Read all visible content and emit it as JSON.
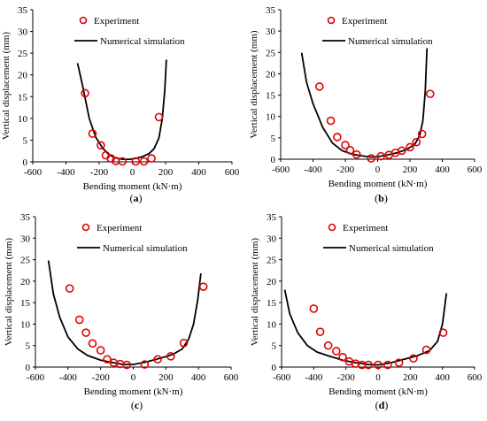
{
  "chart_data": [
    {
      "type": "scatter+line",
      "caption": "a",
      "xlabel": "Bending moment (kN·m)",
      "ylabel": "Vertical displacement (mm)",
      "xlim": [
        -600,
        600
      ],
      "ylim": [
        0,
        35
      ],
      "xticks": [
        -600,
        -400,
        -200,
        0,
        200,
        400,
        600
      ],
      "yticks": [
        0,
        5,
        10,
        15,
        20,
        25,
        30,
        35
      ],
      "legend": [
        "Experiment",
        "Numerical simulation"
      ],
      "experiment": [
        [
          -285,
          15.8
        ],
        [
          -240,
          6.5
        ],
        [
          -190,
          3.8
        ],
        [
          -160,
          1.5
        ],
        [
          -130,
          0.8
        ],
        [
          -100,
          0.2
        ],
        [
          -60,
          0.1
        ],
        [
          20,
          0.1
        ],
        [
          70,
          0.1
        ],
        [
          115,
          0.8
        ],
        [
          160,
          10.3
        ]
      ],
      "simulation": [
        [
          -330,
          22.7
        ],
        [
          -300,
          17.5
        ],
        [
          -260,
          10.0
        ],
        [
          -220,
          5.6
        ],
        [
          -180,
          3.2
        ],
        [
          -140,
          1.6
        ],
        [
          -100,
          0.9
        ],
        [
          -60,
          0.6
        ],
        [
          -20,
          0.6
        ],
        [
          20,
          0.8
        ],
        [
          60,
          1.2
        ],
        [
          100,
          1.9
        ],
        [
          130,
          3.0
        ],
        [
          160,
          5.5
        ],
        [
          180,
          10.0
        ],
        [
          195,
          16.5
        ],
        [
          205,
          23.5
        ]
      ]
    },
    {
      "type": "scatter+line",
      "caption": "b",
      "xlabel": "Bending moment (kN·m)",
      "ylabel": "Vertical displacement (mm)",
      "xlim": [
        -600,
        600
      ],
      "ylim": [
        0,
        35
      ],
      "xticks": [
        -600,
        -400,
        -200,
        0,
        200,
        400,
        600
      ],
      "yticks": [
        0,
        5,
        10,
        15,
        20,
        25,
        30,
        35
      ],
      "legend": [
        "Experiment",
        "Numerical simulation"
      ],
      "experiment": [
        [
          -360,
          17.0
        ],
        [
          -290,
          9.0
        ],
        [
          -250,
          5.2
        ],
        [
          -200,
          3.3
        ],
        [
          -170,
          2.1
        ],
        [
          -130,
          1.1
        ],
        [
          -40,
          0.2
        ],
        [
          20,
          0.7
        ],
        [
          70,
          1.0
        ],
        [
          110,
          1.5
        ],
        [
          150,
          2.0
        ],
        [
          200,
          2.8
        ],
        [
          240,
          4.0
        ],
        [
          275,
          5.9
        ],
        [
          325,
          15.3
        ]
      ],
      "simulation": [
        [
          -470,
          24.9
        ],
        [
          -440,
          18.0
        ],
        [
          -400,
          13.0
        ],
        [
          -340,
          7.5
        ],
        [
          -280,
          3.8
        ],
        [
          -220,
          2.0
        ],
        [
          -160,
          1.2
        ],
        [
          -100,
          0.8
        ],
        [
          -40,
          0.5
        ],
        [
          0,
          0.6
        ],
        [
          60,
          1.0
        ],
        [
          120,
          1.5
        ],
        [
          180,
          2.3
        ],
        [
          230,
          3.5
        ],
        [
          260,
          5.5
        ],
        [
          280,
          9.0
        ],
        [
          295,
          16.0
        ],
        [
          305,
          26.0
        ]
      ]
    },
    {
      "type": "scatter+line",
      "caption": "c",
      "xlabel": "Bending moment (kN·m)",
      "ylabel": "Vertical displacement (mm)",
      "xlim": [
        -600,
        600
      ],
      "ylim": [
        0,
        35
      ],
      "xticks": [
        -600,
        -400,
        -200,
        0,
        200,
        400,
        600
      ],
      "yticks": [
        0,
        5,
        10,
        15,
        20,
        25,
        30,
        35
      ],
      "legend": [
        "Experiment",
        "Numerical simulation"
      ],
      "experiment": [
        [
          -390,
          18.3
        ],
        [
          -330,
          11.0
        ],
        [
          -290,
          8.0
        ],
        [
          -250,
          5.5
        ],
        [
          -200,
          3.9
        ],
        [
          -160,
          1.8
        ],
        [
          -120,
          1.0
        ],
        [
          -80,
          0.7
        ],
        [
          -40,
          0.5
        ],
        [
          70,
          0.6
        ],
        [
          150,
          1.8
        ],
        [
          230,
          2.5
        ],
        [
          310,
          5.6
        ],
        [
          430,
          18.7
        ]
      ],
      "simulation": [
        [
          -520,
          24.8
        ],
        [
          -490,
          17.0
        ],
        [
          -450,
          11.5
        ],
        [
          -400,
          7.0
        ],
        [
          -340,
          4.2
        ],
        [
          -280,
          2.7
        ],
        [
          -200,
          1.6
        ],
        [
          -120,
          1.0
        ],
        [
          -60,
          0.6
        ],
        [
          0,
          0.6
        ],
        [
          80,
          1.2
        ],
        [
          160,
          2.0
        ],
        [
          240,
          2.9
        ],
        [
          300,
          4.2
        ],
        [
          340,
          6.5
        ],
        [
          370,
          10.0
        ],
        [
          395,
          15.5
        ],
        [
          415,
          21.8
        ]
      ]
    },
    {
      "type": "scatter+line",
      "caption": "d",
      "xlabel": "Bending moment (kN·m)",
      "ylabel": "Vertical displacement (mm)",
      "xlim": [
        -600,
        600
      ],
      "ylim": [
        0,
        35
      ],
      "xticks": [
        -600,
        -400,
        -200,
        0,
        200,
        400,
        600
      ],
      "yticks": [
        0,
        5,
        10,
        15,
        20,
        25,
        30,
        35
      ],
      "legend": [
        "Experiment",
        "Numerical simulation"
      ],
      "experiment": [
        [
          -400,
          13.6
        ],
        [
          -360,
          8.2
        ],
        [
          -310,
          5.0
        ],
        [
          -260,
          3.7
        ],
        [
          -220,
          2.3
        ],
        [
          -180,
          1.3
        ],
        [
          -140,
          0.8
        ],
        [
          -100,
          0.5
        ],
        [
          -60,
          0.5
        ],
        [
          0,
          0.5
        ],
        [
          60,
          0.5
        ],
        [
          130,
          1.0
        ],
        [
          220,
          2.0
        ],
        [
          300,
          4.0
        ],
        [
          405,
          8.0
        ]
      ],
      "simulation": [
        [
          -580,
          18.0
        ],
        [
          -550,
          12.5
        ],
        [
          -500,
          8.0
        ],
        [
          -440,
          5.0
        ],
        [
          -380,
          3.5
        ],
        [
          -300,
          2.5
        ],
        [
          -220,
          1.6
        ],
        [
          -140,
          1.0
        ],
        [
          -60,
          0.6
        ],
        [
          0,
          0.5
        ],
        [
          80,
          1.0
        ],
        [
          160,
          1.8
        ],
        [
          240,
          2.6
        ],
        [
          320,
          3.8
        ],
        [
          370,
          6.0
        ],
        [
          400,
          10.0
        ],
        [
          425,
          17.2
        ]
      ]
    }
  ]
}
